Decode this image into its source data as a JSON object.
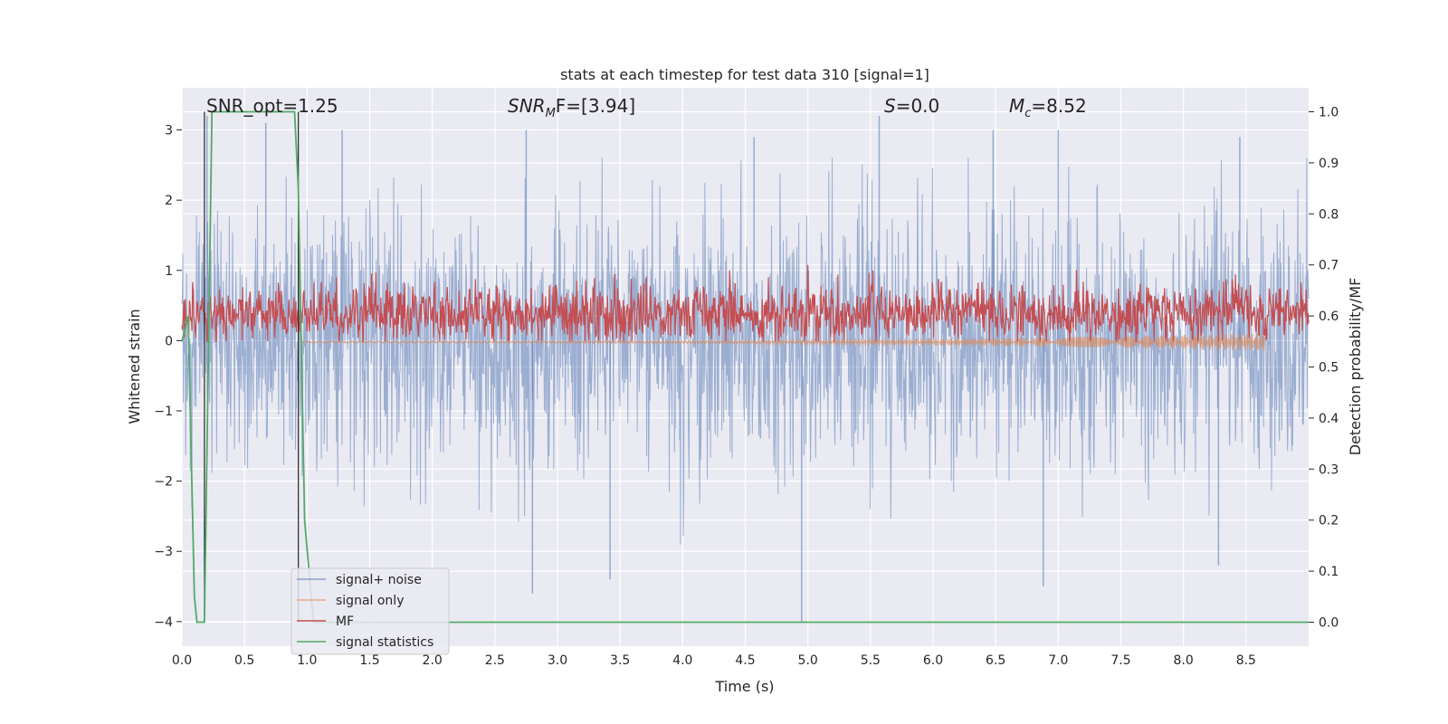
{
  "chart_data": {
    "type": "line",
    "title": "stats at each timestep for test data 310 [signal=1]",
    "xlabel": "Time (s)",
    "ylabel": "Whitened strain",
    "y2label": "Detection probability/MF",
    "xlim": [
      0,
      9.0
    ],
    "ylim": [
      -4.35,
      3.6
    ],
    "y2lim": [
      -0.047,
      1.047
    ],
    "xticks": [
      "0.0",
      "0.5",
      "1.0",
      "1.5",
      "2.0",
      "2.5",
      "3.0",
      "3.5",
      "4.0",
      "4.5",
      "5.0",
      "5.5",
      "6.0",
      "6.5",
      "7.0",
      "7.5",
      "8.0",
      "8.5"
    ],
    "yticks": [
      "−4",
      "−3",
      "−2",
      "−1",
      "0",
      "1",
      "2",
      "3"
    ],
    "y2ticks": [
      "0.0",
      "0.1",
      "0.2",
      "0.3",
      "0.4",
      "0.5",
      "0.6",
      "0.7",
      "0.8",
      "0.9",
      "1.0"
    ],
    "grid": true,
    "legend_position": "lower-left",
    "annotations": {
      "snr_opt": "SNR_opt=1.25",
      "snr_mf_sym": "SNR",
      "snr_mf_sub": "M",
      "snr_mf_rest": "F=[3.94]",
      "s_sym": "S",
      "s_rest": "=0.0",
      "mc_sym": "M",
      "mc_sub": "c",
      "mc_rest": "=8.52"
    },
    "series": [
      {
        "name": "signal+ noise",
        "color": "#4c72b0",
        "axis": "left",
        "description_values": "noise band approx ±1.5 with peaks up to 3.2 and down to -4.0",
        "peaks": [
          {
            "x": 0.2,
            "y": 3.2
          },
          {
            "x": 0.67,
            "y": 3.1
          },
          {
            "x": 1.28,
            "y": 3.0
          },
          {
            "x": 2.75,
            "y": 3.0
          },
          {
            "x": 4.57,
            "y": 2.9
          },
          {
            "x": 5.57,
            "y": 3.2
          },
          {
            "x": 6.48,
            "y": 3.0
          },
          {
            "x": 7.0,
            "y": 3.0
          },
          {
            "x": 8.45,
            "y": 2.9
          },
          {
            "x": 2.8,
            "y": -3.6
          },
          {
            "x": 3.42,
            "y": -3.4
          },
          {
            "x": 4.95,
            "y": -4.0
          },
          {
            "x": 6.88,
            "y": -3.5
          },
          {
            "x": 8.28,
            "y": -3.2
          }
        ]
      },
      {
        "name": "signal only",
        "color": "#dd8452",
        "axis": "left",
        "values_summary": "near 0, small chirp oscillation growing to about -0.15 near 8.6 s"
      },
      {
        "name": "MF",
        "color": "#c44e52",
        "axis": "right",
        "values_summary": "fluctuates between about 0.55 and 0.70 around 0.6"
      },
      {
        "name": "signal statistics",
        "color": "#55a868",
        "axis": "right",
        "x": [
          0.0,
          0.05,
          0.1,
          0.12,
          0.18,
          0.21,
          0.24,
          0.9,
          0.93,
          0.98,
          1.05,
          9.0
        ],
        "y": [
          0.55,
          0.6,
          0.05,
          0.0,
          0.0,
          0.5,
          1.0,
          1.0,
          0.85,
          0.2,
          0.0,
          0.0
        ]
      }
    ],
    "vlines": [
      0.18,
      0.93
    ]
  }
}
